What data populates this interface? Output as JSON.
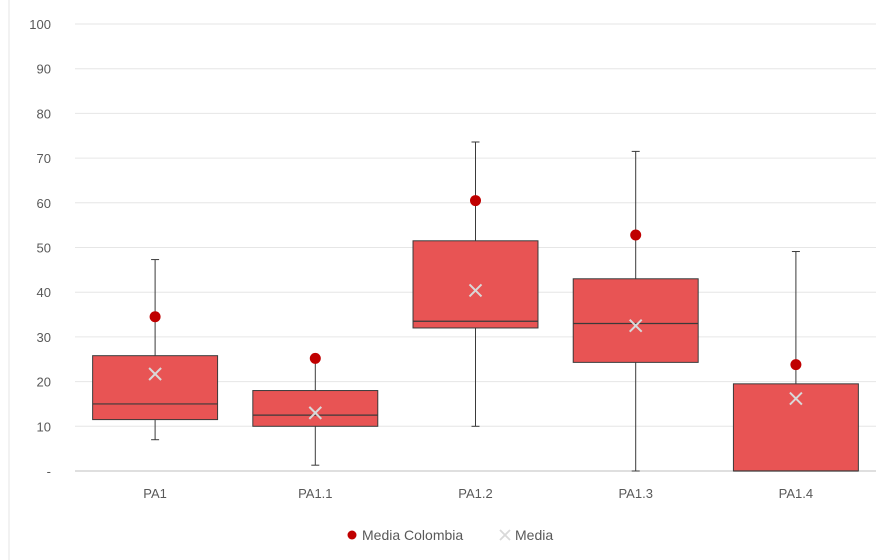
{
  "chart_data": {
    "type": "boxplot",
    "title": "",
    "xlabel": "",
    "ylabel": "",
    "ylim": [
      0,
      100
    ],
    "y_ticks": [
      0,
      10,
      20,
      30,
      40,
      50,
      60,
      70,
      80,
      90,
      100
    ],
    "y_tick_labels": [
      "-",
      "10",
      "20",
      "30",
      "40",
      "50",
      "60",
      "70",
      "80",
      "90",
      "100"
    ],
    "grid": true,
    "legend_position": "bottom",
    "categories": [
      "PA1",
      "PA1.1",
      "PA1.2",
      "PA1.3",
      "PA1.4"
    ],
    "boxes": [
      {
        "min": 7,
        "q1": 11.5,
        "median": 15,
        "q3": 25.8,
        "max": 47.3,
        "mean": 21.7
      },
      {
        "min": 1.3,
        "q1": 10,
        "median": 12.5,
        "q3": 18,
        "max": 25,
        "mean": 13
      },
      {
        "min": 10,
        "q1": 32,
        "median": 33.5,
        "q3": 51.5,
        "max": 73.6,
        "mean": 40.4
      },
      {
        "min": 0,
        "q1": 24.3,
        "median": 33,
        "q3": 43,
        "max": 71.5,
        "mean": 32.5
      },
      {
        "min": 0,
        "q1": 0,
        "median": 0,
        "q3": 19.5,
        "max": 49.1,
        "mean": 16.2
      }
    ],
    "media_colombia": [
      34.5,
      25.2,
      60.5,
      52.8,
      23.8
    ],
    "series": [
      {
        "name": "Media Colombia",
        "color": "#c00000",
        "marker": "circle"
      },
      {
        "name": "Media",
        "color": "#d9d9d9",
        "marker": "x"
      }
    ],
    "colors": {
      "box_fill": "#e85454",
      "box_stroke": "#3a3a3a",
      "whisker": "#3a3a3a",
      "grid": "#e6e6e6",
      "axis": "#bfbfbf"
    }
  }
}
